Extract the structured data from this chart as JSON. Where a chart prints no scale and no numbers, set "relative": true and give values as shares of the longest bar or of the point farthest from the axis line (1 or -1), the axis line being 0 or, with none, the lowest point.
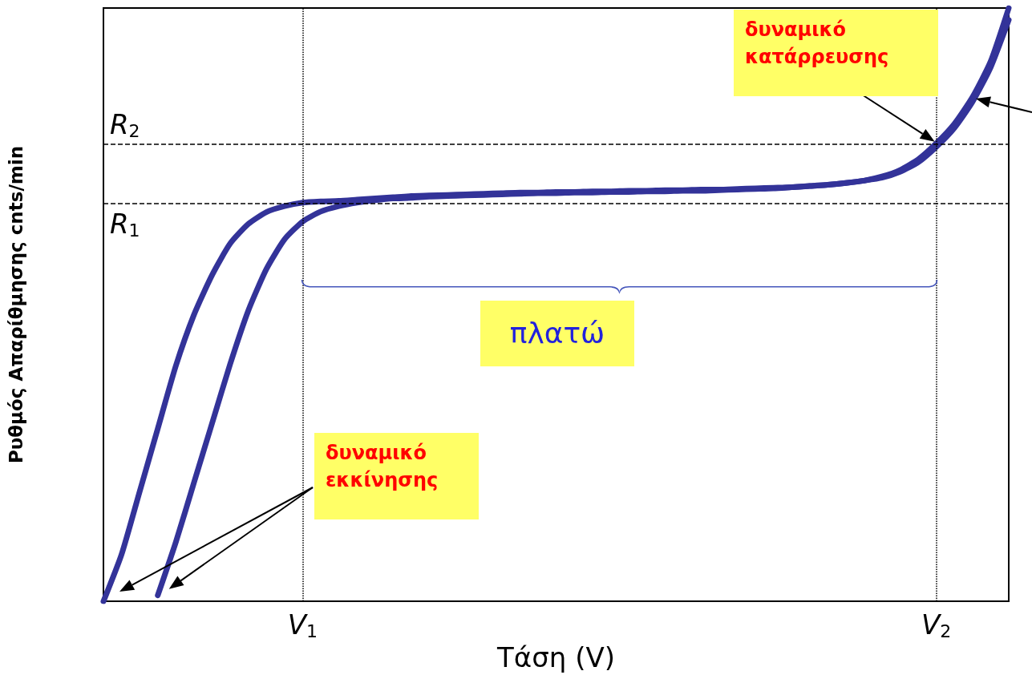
{
  "chart_data": {
    "type": "line",
    "relative": true,
    "xlabel": "Τάση (V)",
    "ylabel": "Ρυθμός Απαρίθμησης cnts/min",
    "categories": [
      null,
      null,
      null,
      null,
      null,
      null,
      null,
      null,
      null,
      null,
      null,
      "V$_{1}$",
      null,
      null,
      null,
      null,
      null,
      null,
      null,
      null,
      null,
      null,
      null,
      null,
      null,
      null,
      null,
      null,
      null,
      null,
      null,
      null,
      null,
      null,
      null,
      null,
      null,
      null,
      null,
      null,
      null,
      null,
      null,
      null,
      null,
      null,
      "V$_{2}$",
      null,
      null,
      null,
      null
    ],
    "tick_labels": "x",
    "grid": false,
    "marker": "none",
    "line_style": "solid",
    "series": [
      {
        "color": "#333399",
        "values": [
          0,
          0.079,
          0.185,
          0.291,
          0.397,
          0.483,
          0.55,
          0.603,
          0.636,
          0.656,
          0.666,
          0.672,
          0.674,
          0.675,
          0.677,
          0.679,
          0.681,
          0.683,
          0.684,
          0.685,
          0.686,
          0.687,
          0.688,
          0.689,
          0.689,
          0.69,
          0.69,
          0.691,
          0.691,
          0.692,
          0.692,
          0.693,
          0.693,
          0.694,
          0.694,
          0.695,
          0.696,
          0.697,
          0.698,
          0.7,
          0.702,
          0.705,
          0.709,
          0.716,
          0.727,
          0.745,
          0.772,
          0.805,
          0.85,
          0.91,
          1.0
        ]
      },
      {
        "color": "#333399",
        "values": [
          null,
          null,
          null,
          0.01,
          0.1,
          0.2,
          0.3,
          0.4,
          0.49,
          0.56,
          0.61,
          0.64,
          0.657,
          0.666,
          0.672,
          0.676,
          0.679,
          0.68,
          0.682,
          0.683,
          0.684,
          0.685,
          0.686,
          0.687,
          0.688,
          0.688,
          0.689,
          0.689,
          0.69,
          0.69,
          0.691,
          0.691,
          0.692,
          0.692,
          0.693,
          0.694,
          0.695,
          0.696,
          0.698,
          0.7,
          0.702,
          0.705,
          0.709,
          0.714,
          0.724,
          0.74,
          0.766,
          0.798,
          0.842,
          0.9,
          0.98
        ]
      }
    ],
    "ref_lines": [
      {
        "axis": "x",
        "value": "V$_{1}$",
        "line_style": "dotted",
        "color": "#000000"
      },
      {
        "axis": "x",
        "value": "V$_{2}$",
        "line_style": "dotted",
        "color": "#000000"
      },
      {
        "axis": "y",
        "value": 0.672,
        "label": "R$_{1}$",
        "line_style": "dashed",
        "color": "#000000"
      },
      {
        "axis": "y",
        "value": 0.772,
        "label": "R$_{2}$",
        "line_style": "dashed",
        "color": "#000000"
      }
    ],
    "annotations": [
      "δυναμικό κατάρρευσης",
      "πλατώ",
      "δυναμικό εκκίνησης"
    ]
  }
}
